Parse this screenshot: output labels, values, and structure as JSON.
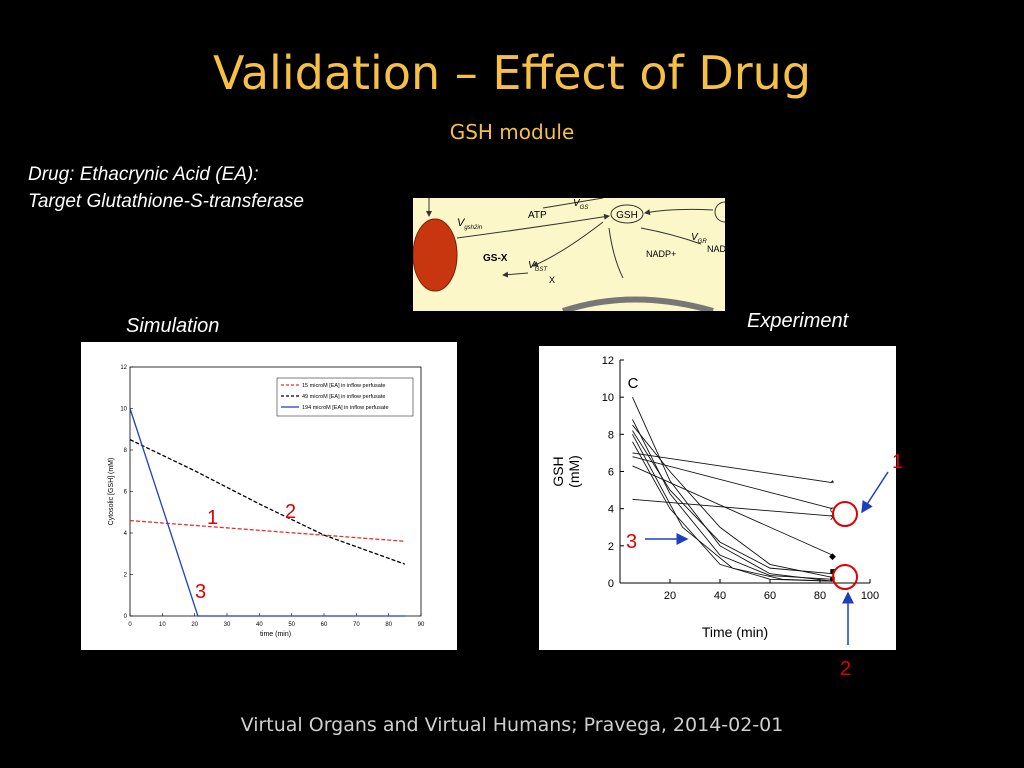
{
  "slide": {
    "title": "Validation – Effect of Drug",
    "subtitle": "GSH module",
    "drug_line1": "Drug: Ethacrynic Acid (EA):",
    "drug_line2": "Target Glutathione-S-transferase",
    "simulation_label": "Simulation",
    "experiment_label": "Experiment",
    "footer": "Virtual Organs and Virtual Humans; Pravega, 2014-02-01"
  },
  "diagram": {
    "nodes": [
      "GSH",
      "ATP",
      "GS-X",
      "NADP+",
      "NAD",
      "X"
    ],
    "rates": [
      "V",
      "gsh2in",
      "GS",
      "GST",
      "GR"
    ]
  },
  "annotations": {
    "sim": [
      "1",
      "2",
      "3"
    ],
    "exp": [
      "1",
      "2",
      "3"
    ]
  },
  "chart_data": [
    {
      "type": "line",
      "title": "",
      "xlabel": "time (min)",
      "ylabel": "Cytosolic [GSH] (mM)",
      "xlim": [
        0,
        90
      ],
      "ylim": [
        0,
        12
      ],
      "xticks": [
        "0",
        "10",
        "20",
        "30",
        "40",
        "50",
        "60",
        "70",
        "80",
        "90"
      ],
      "yticks": [
        "0",
        "2",
        "4",
        "6",
        "8",
        "10",
        "12"
      ],
      "legend": "top-right",
      "series": [
        {
          "name": "15 microM [EA] in inflow perfusate",
          "color": "#e8312b",
          "dash": true,
          "x": [
            0,
            85
          ],
          "y": [
            4.6,
            3.6
          ]
        },
        {
          "name": "49 microM [EA] in inflow perfusate",
          "color": "#000000",
          "dash": true,
          "x": [
            0,
            20,
            40,
            60,
            85
          ],
          "y": [
            8.5,
            7.0,
            5.4,
            3.9,
            2.5
          ]
        },
        {
          "name": "194 microM [EA] in inflow perfusate",
          "color": "#1f3fbf",
          "dash": false,
          "x": [
            0,
            21,
            85
          ],
          "y": [
            10.0,
            0.0,
            0.0
          ]
        }
      ]
    },
    {
      "type": "line",
      "title": "C",
      "xlabel": "Time (min)",
      "ylabel": "GSH (mM)",
      "xlim": [
        0,
        100
      ],
      "ylim": [
        0,
        12
      ],
      "xticks": [
        "20",
        "40",
        "60",
        "80",
        "100"
      ],
      "yticks": [
        "0",
        "2",
        "4",
        "6",
        "8",
        "10",
        "12"
      ],
      "series": [
        {
          "x": [
            5,
            85
          ],
          "y": [
            7.0,
            5.4
          ]
        },
        {
          "x": [
            5,
            85
          ],
          "y": [
            6.8,
            4.0
          ]
        },
        {
          "x": [
            5,
            85
          ],
          "y": [
            4.5,
            3.6
          ]
        },
        {
          "x": [
            5,
            85
          ],
          "y": [
            6.3,
            1.5
          ]
        },
        {
          "x": [
            5,
            20,
            40,
            60,
            85
          ],
          "y": [
            10.0,
            5.5,
            2.0,
            0.5,
            0.1
          ]
        },
        {
          "x": [
            5,
            20,
            40,
            60,
            85
          ],
          "y": [
            8.8,
            4.8,
            1.5,
            0.4,
            0.2
          ]
        },
        {
          "x": [
            5,
            20,
            40,
            60,
            85
          ],
          "y": [
            8.5,
            6.0,
            3.0,
            1.0,
            0.3
          ]
        },
        {
          "x": [
            5,
            20,
            40,
            60,
            85
          ],
          "y": [
            8.2,
            5.0,
            2.2,
            0.8,
            0.5
          ]
        },
        {
          "x": [
            5,
            20,
            40,
            60,
            85
          ],
          "y": [
            7.6,
            4.0,
            1.0,
            0.2,
            0.1
          ]
        },
        {
          "x": [
            5,
            25,
            45,
            65,
            85
          ],
          "y": [
            8.0,
            3.0,
            0.8,
            0.2,
            0.1
          ]
        }
      ],
      "markers": [
        {
          "x": 85,
          "y": 5.4,
          "symbol": "*"
        },
        {
          "x": 85,
          "y": 4.0,
          "symbol": "o"
        },
        {
          "x": 85,
          "y": 3.6,
          "symbol": "x"
        },
        {
          "x": 85,
          "y": 1.5,
          "symbol": "◆"
        },
        {
          "x": 85,
          "y": 0.7,
          "symbol": "■"
        },
        {
          "x": 85,
          "y": 0.3,
          "symbol": "■"
        }
      ]
    }
  ]
}
